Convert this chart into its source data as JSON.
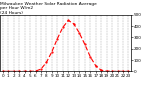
{
  "title": "Milwaukee Weather Solar Radiation Average\nper Hour W/m2\n(24 Hours)",
  "hours": [
    0,
    1,
    2,
    3,
    4,
    5,
    6,
    7,
    8,
    9,
    10,
    11,
    12,
    13,
    14,
    15,
    16,
    17,
    18,
    19,
    20,
    21,
    22,
    23
  ],
  "values": [
    0,
    0,
    0,
    0,
    0,
    0,
    2,
    20,
    80,
    175,
    290,
    390,
    450,
    420,
    340,
    240,
    130,
    50,
    10,
    2,
    0,
    0,
    0,
    0
  ],
  "line_color": "#ff0000",
  "bg_color": "#ffffff",
  "grid_color": "#888888",
  "ylim": [
    0,
    500
  ],
  "xlim": [
    -0.5,
    23.5
  ],
  "title_fontsize": 3.2,
  "tick_fontsize": 3.0,
  "line_width": 0.8,
  "y_ticks": [
    0,
    100,
    200,
    300,
    400,
    500
  ]
}
